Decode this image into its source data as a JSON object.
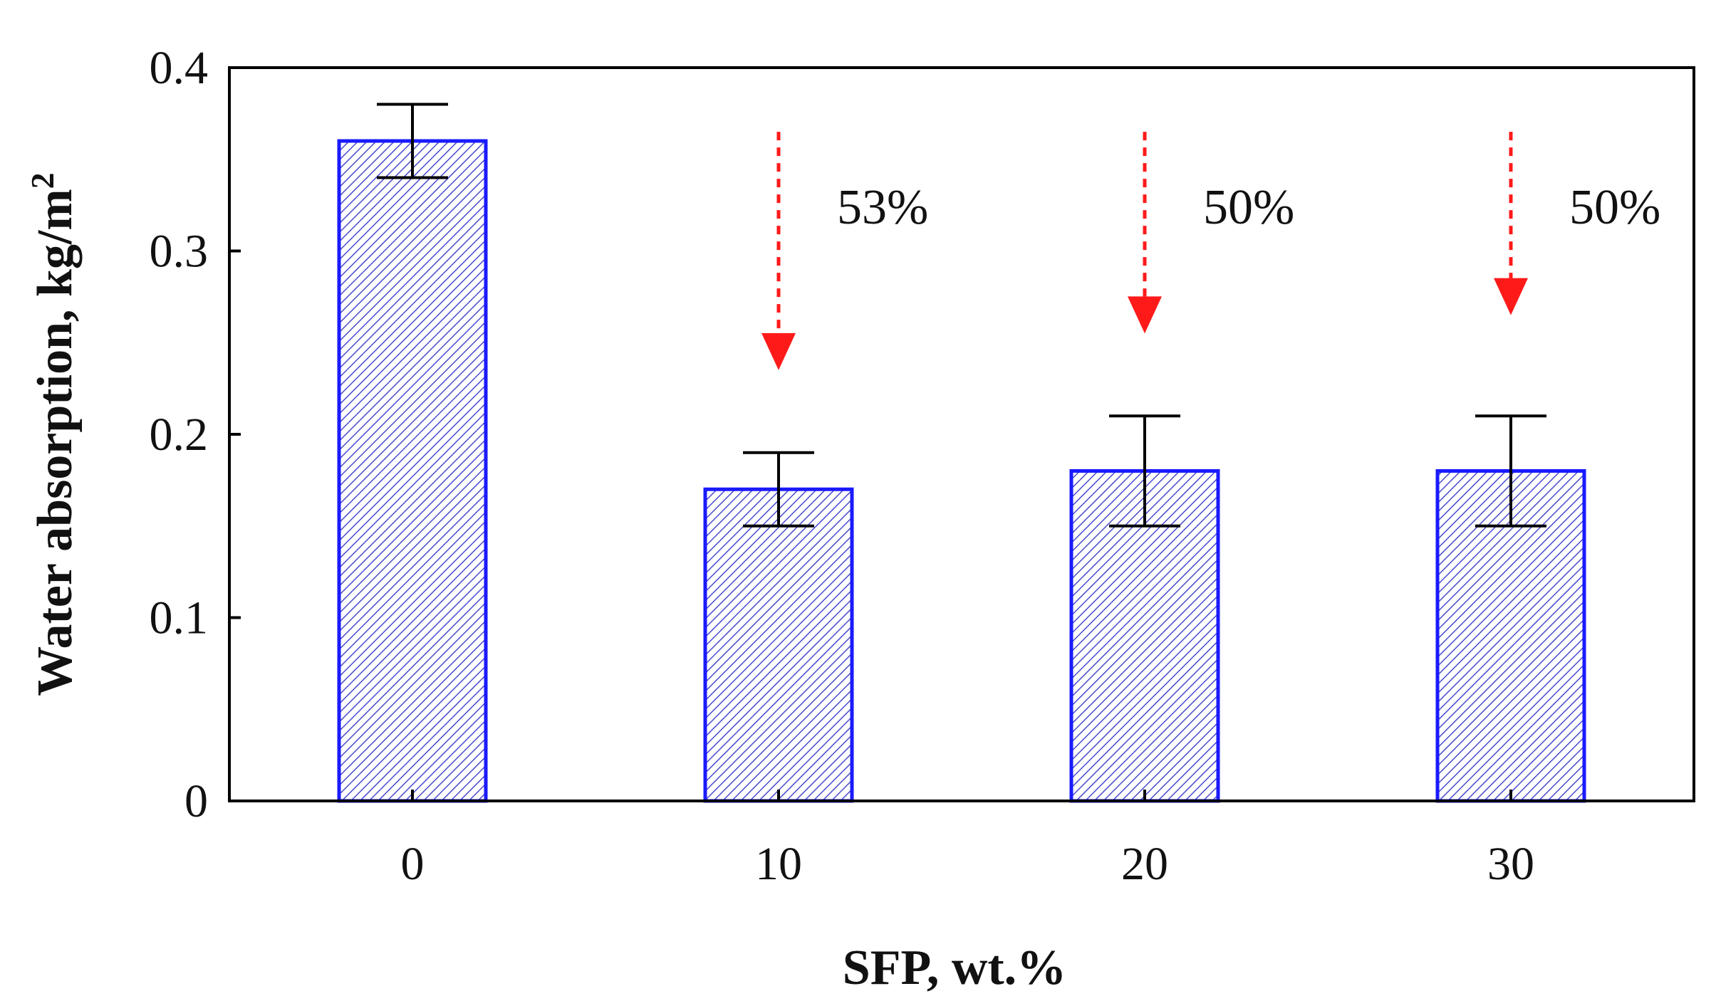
{
  "chart_data": {
    "type": "bar",
    "title": "",
    "xlabel": "SFP, wt.%",
    "ylabel": "Water absorption, kg/m",
    "ylabel_superscript": "2",
    "categories": [
      "0",
      "10",
      "20",
      "30"
    ],
    "values": [
      0.36,
      0.17,
      0.18,
      0.18
    ],
    "error_high": [
      0.38,
      0.19,
      0.21,
      0.21
    ],
    "error_low": [
      0.34,
      0.15,
      0.15,
      0.15
    ],
    "ylim": [
      0,
      0.4
    ],
    "yticks": [
      0,
      0.1,
      0.2,
      0.3,
      0.4
    ],
    "ytick_labels": [
      "0",
      "0.1",
      "0.2",
      "0.3",
      "0.4"
    ],
    "grid": false,
    "legend": "none",
    "annotations": [
      {
        "category": "10",
        "label": "53%",
        "arrow_from": 0.365,
        "arrow_to": 0.235
      },
      {
        "category": "20",
        "label": "50%",
        "arrow_from": 0.365,
        "arrow_to": 0.255
      },
      {
        "category": "30",
        "label": "50%",
        "arrow_from": 0.365,
        "arrow_to": 0.265
      }
    ],
    "colors": {
      "bar_stroke": "#1a1aff",
      "bar_hatch": "#4a4acc",
      "bar_bg": "#ffffff",
      "arrow": "#ff1a1a",
      "axis": "#000000",
      "errorbar": "#000000"
    }
  }
}
